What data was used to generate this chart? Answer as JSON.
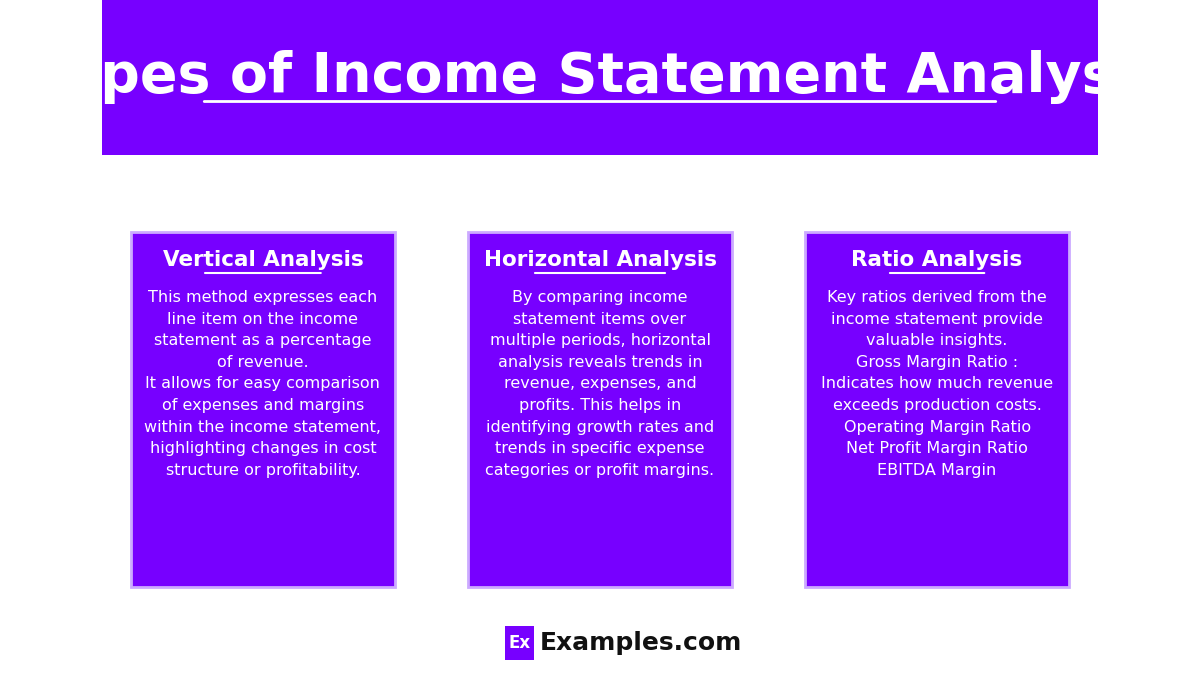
{
  "title": "Types of Income Statement Analysis",
  "title_color": "#ffffff",
  "title_bg_color": "#7700ff",
  "body_bg_color": "#ffffff",
  "card_bg_color": "#7700ff",
  "card_border_color": "#ccaaff",
  "card_text_color": "#ffffff",
  "footer_text": "Examples.com",
  "footer_badge_text": "Ex",
  "footer_badge_bg": "#7700ff",
  "footer_badge_text_color": "#ffffff",
  "footer_text_color": "#111111",
  "cards": [
    {
      "title": "Vertical Analysis",
      "body": "This method expresses each\nline item on the income\nstatement as a percentage\nof revenue.\nIt allows for easy comparison\nof expenses and margins\nwithin the income statement,\nhighlighting changes in cost\nstructure or profitability."
    },
    {
      "title": "Horizontal Analysis",
      "body": "By comparing income\nstatement items over\nmultiple periods, horizontal\nanalysis reveals trends in\nrevenue, expenses, and\nprofits. This helps in\nidentifying growth rates and\ntrends in specific expense\ncategories or profit margins."
    },
    {
      "title": "Ratio Analysis",
      "body": "Key ratios derived from the\nincome statement provide\nvaluable insights.\nGross Margin Ratio :\nIndicates how much revenue\nexceeds production costs.\nOperating Margin Ratio\nNet Profit Margin Ratio\nEBITDA Margin"
    }
  ]
}
